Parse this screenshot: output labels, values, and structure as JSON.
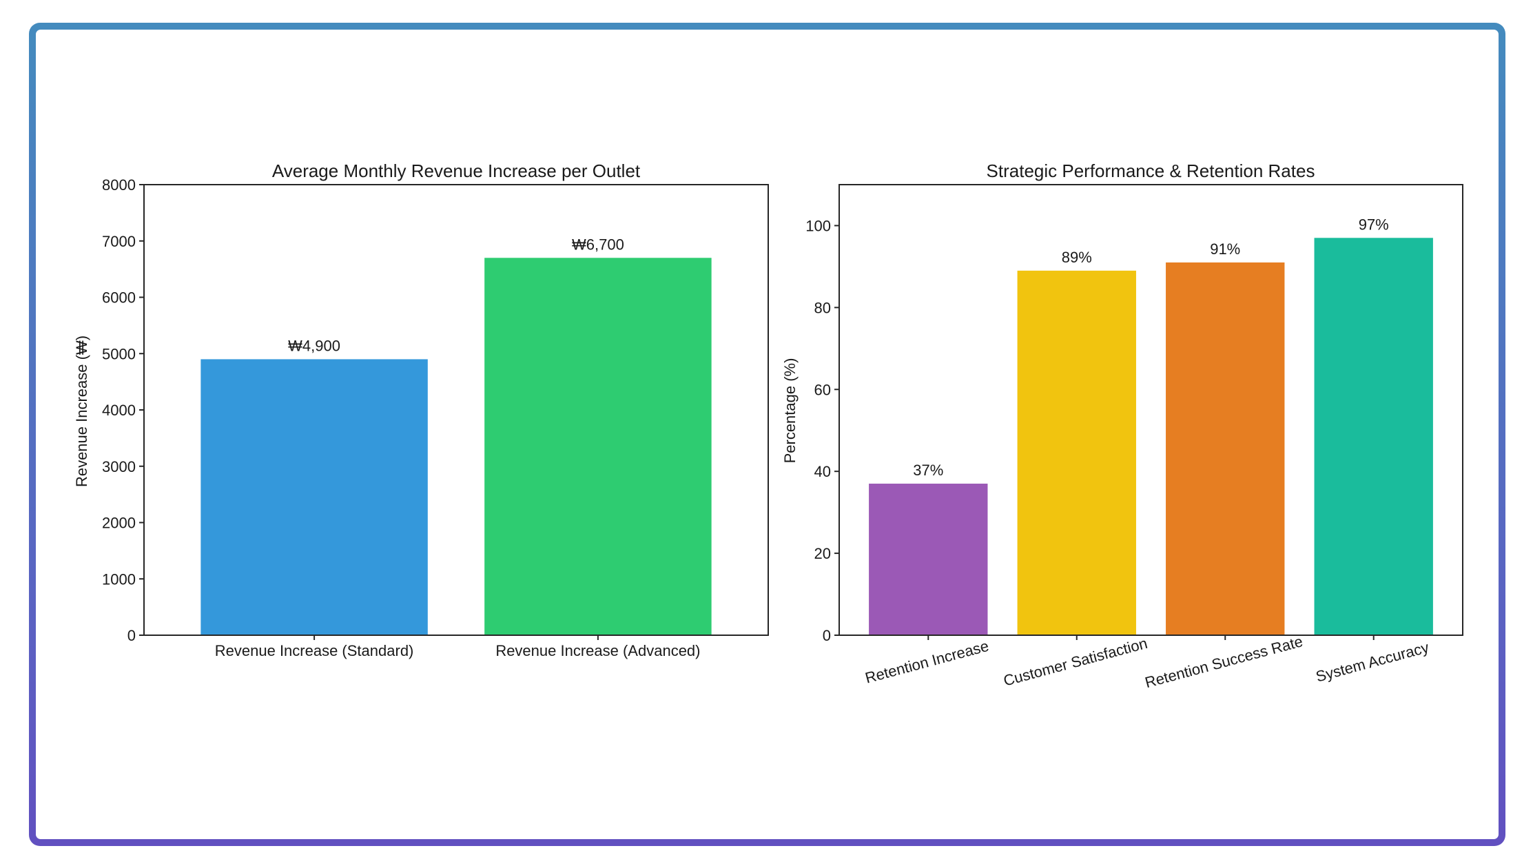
{
  "chart_data": [
    {
      "type": "bar",
      "title": "Average Monthly Revenue Increase per Outlet",
      "xlabel": "",
      "ylabel": "Revenue Increase (₩)",
      "categories": [
        "Revenue Increase (Standard)",
        "Revenue Increase (Advanced)"
      ],
      "values": [
        4900,
        6700
      ],
      "data_labels": [
        "₩4,900",
        "₩6,700"
      ],
      "colors": [
        "#3498db",
        "#2ecc71"
      ],
      "ylim": [
        0,
        8000
      ],
      "yticks": [
        0,
        1000,
        2000,
        3000,
        4000,
        5000,
        6000,
        7000,
        8000
      ],
      "grid": false,
      "legend": "none"
    },
    {
      "type": "bar",
      "title": "Strategic Performance & Retention Rates",
      "xlabel": "",
      "ylabel": "Percentage (%)",
      "categories": [
        "Retention Increase",
        "Customer Satisfaction",
        "Retention Success Rate",
        "System Accuracy"
      ],
      "values": [
        37,
        89,
        91,
        97
      ],
      "data_labels": [
        "37%",
        "89%",
        "91%",
        "97%"
      ],
      "colors": [
        "#9b59b6",
        "#f1c40f",
        "#e67e22",
        "#1abc9c"
      ],
      "ylim": [
        0,
        110
      ],
      "yticks": [
        0,
        20,
        40,
        60,
        80,
        100
      ],
      "xtick_rotation_deg": 15,
      "grid": false,
      "legend": "none"
    }
  ],
  "frame": {
    "border_color_top": "#448bbe",
    "border_color_bottom": "#6150c0"
  }
}
